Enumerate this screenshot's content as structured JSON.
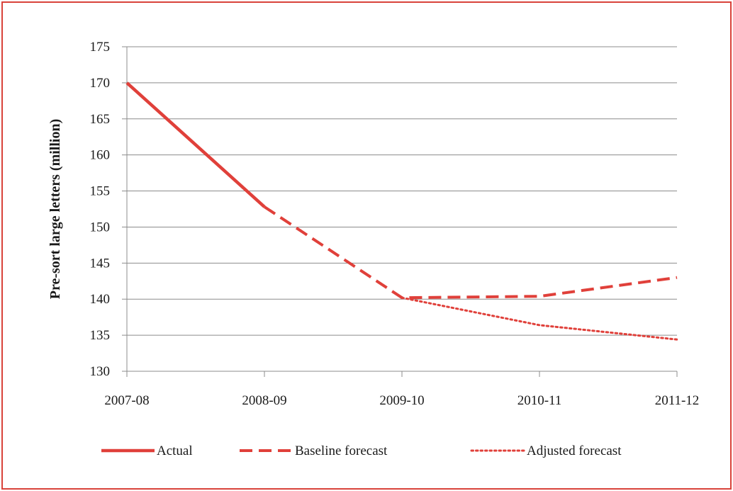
{
  "chart_data": {
    "type": "line",
    "categories": [
      "2007-08",
      "2008-09",
      "2009-10",
      "2010-11",
      "2011-12"
    ],
    "ylabel": "Pre-sort large letters  (million)",
    "xlabel": "",
    "ylim": [
      130,
      175
    ],
    "yticks": [
      130,
      135,
      140,
      145,
      150,
      155,
      160,
      165,
      170,
      175
    ],
    "grid": true,
    "legend_position": "bottom",
    "series": [
      {
        "name": "Actual",
        "style": "solid",
        "color": "#e0403a",
        "values": [
          170,
          152.8,
          null,
          null,
          null
        ]
      },
      {
        "name": "Baseline forecast",
        "style": "dashed",
        "color": "#e0403a",
        "values": [
          null,
          152.8,
          140.2,
          140.4,
          143.0
        ]
      },
      {
        "name": "Adjusted forecast",
        "style": "dotted",
        "color": "#e0403a",
        "values": [
          null,
          null,
          140.2,
          136.4,
          134.4
        ]
      }
    ]
  }
}
